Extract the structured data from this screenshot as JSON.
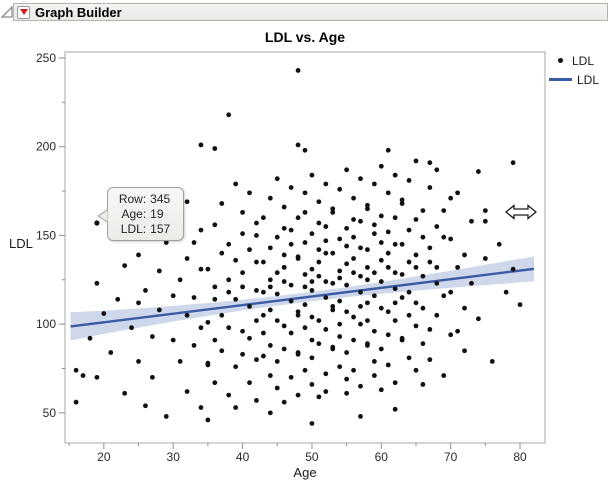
{
  "window": {
    "title": "Graph Builder"
  },
  "chart_data": {
    "type": "scatter",
    "title": "LDL vs. Age",
    "xlabel": "Age",
    "ylabel": "LDL",
    "x_domain": [
      14.4,
      83.6
    ],
    "y_domain": [
      33,
      253.4
    ],
    "x_ticks": [
      20,
      30,
      40,
      50,
      60,
      70,
      80
    ],
    "x_minor_ticks": [
      15,
      25,
      35,
      45,
      55,
      65,
      75
    ],
    "y_ticks": [
      50,
      100,
      150,
      200,
      250
    ],
    "y_minor_ticks": [
      75,
      125,
      175,
      225
    ],
    "grid": false,
    "legend_position": "top-right",
    "legend": [
      {
        "label": "LDL",
        "marker": "dot"
      },
      {
        "label": "LDL",
        "marker": "line"
      }
    ],
    "colors": {
      "point": "#111111",
      "fit_line": "#3a5ba5",
      "band": "rgba(96,124,187,0.30)",
      "axis": "#909090",
      "plot_border": "#aaaaaa",
      "tick_label": "#2a2a2a"
    },
    "fit_line": {
      "slope": 0.486,
      "intercept": 91.3,
      "x_start": 15.2,
      "x_end": 82
    },
    "confidence_band": {
      "ages": [
        15.2,
        20,
        25,
        30,
        35,
        40,
        45,
        49,
        55,
        60,
        65,
        70,
        75,
        82
      ],
      "halfwidths": [
        8.0,
        6.5,
        5.4,
        4.4,
        3.6,
        3.0,
        2.7,
        2.6,
        2.8,
        3.3,
        4.0,
        4.8,
        5.7,
        7.0
      ]
    },
    "highlight_point": [
      19,
      157
    ],
    "points": [
      [
        18,
        92
      ],
      [
        19,
        123
      ],
      [
        19,
        70
      ],
      [
        20,
        106
      ],
      [
        21,
        149
      ],
      [
        21,
        84
      ],
      [
        22,
        114
      ],
      [
        22,
        156
      ],
      [
        23,
        61
      ],
      [
        23,
        133
      ],
      [
        24,
        98
      ],
      [
        24,
        161
      ],
      [
        25,
        79
      ],
      [
        25,
        112
      ],
      [
        25,
        139
      ],
      [
        26,
        54
      ],
      [
        26,
        119
      ],
      [
        27,
        93
      ],
      [
        27,
        173
      ],
      [
        27,
        70
      ],
      [
        28,
        108
      ],
      [
        28,
        130
      ],
      [
        29,
        48
      ],
      [
        29,
        146
      ],
      [
        30,
        91
      ],
      [
        30,
        116
      ],
      [
        30,
        158
      ],
      [
        31,
        79
      ],
      [
        31,
        125
      ],
      [
        32,
        62
      ],
      [
        32,
        137
      ],
      [
        32,
        105
      ],
      [
        32,
        169
      ],
      [
        33,
        88
      ],
      [
        33,
        115
      ],
      [
        33,
        146
      ],
      [
        34,
        53
      ],
      [
        34,
        131
      ],
      [
        34,
        98
      ],
      [
        34,
        153
      ],
      [
        34,
        201
      ],
      [
        35,
        77
      ],
      [
        35,
        101
      ],
      [
        35,
        131
      ],
      [
        35,
        78
      ],
      [
        35,
        46
      ],
      [
        36,
        114
      ],
      [
        36,
        156
      ],
      [
        36,
        91
      ],
      [
        36,
        121
      ],
      [
        36,
        67
      ],
      [
        36,
        199
      ],
      [
        37,
        140
      ],
      [
        37,
        105
      ],
      [
        37,
        168
      ],
      [
        37,
        85
      ],
      [
        38,
        118
      ],
      [
        38,
        145
      ],
      [
        38,
        60
      ],
      [
        38,
        125
      ],
      [
        38,
        98
      ],
      [
        38,
        218
      ],
      [
        39,
        179
      ],
      [
        39,
        76
      ],
      [
        39,
        114
      ],
      [
        39,
        136
      ],
      [
        39,
        53
      ],
      [
        40,
        151
      ],
      [
        40,
        96
      ],
      [
        40,
        121
      ],
      [
        40,
        163
      ],
      [
        40,
        83
      ],
      [
        40,
        129
      ],
      [
        41,
        67
      ],
      [
        41,
        142
      ],
      [
        41,
        110
      ],
      [
        41,
        174
      ],
      [
        41,
        92
      ],
      [
        42,
        119
      ],
      [
        42,
        150
      ],
      [
        42,
        57
      ],
      [
        42,
        135
      ],
      [
        42,
        102
      ],
      [
        42,
        157
      ],
      [
        42,
        80
      ],
      [
        43,
        105
      ],
      [
        43,
        135
      ],
      [
        43,
        82
      ],
      [
        43,
        118
      ],
      [
        43,
        160
      ],
      [
        43,
        95
      ],
      [
        44,
        125
      ],
      [
        44,
        71
      ],
      [
        44,
        143
      ],
      [
        44,
        108
      ],
      [
        44,
        171
      ],
      [
        44,
        88
      ],
      [
        44,
        121
      ],
      [
        44,
        50
      ],
      [
        45,
        149
      ],
      [
        45,
        64
      ],
      [
        45,
        129
      ],
      [
        45,
        102
      ],
      [
        45,
        182
      ],
      [
        45,
        79
      ],
      [
        45,
        117
      ],
      [
        46,
        139
      ],
      [
        46,
        56
      ],
      [
        46,
        154
      ],
      [
        46,
        99
      ],
      [
        46,
        124
      ],
      [
        46,
        166
      ],
      [
        46,
        86
      ],
      [
        46,
        132
      ],
      [
        47,
        70
      ],
      [
        47,
        145
      ],
      [
        47,
        113
      ],
      [
        47,
        177
      ],
      [
        47,
        95
      ],
      [
        47,
        122
      ],
      [
        47,
        153
      ],
      [
        48,
        60
      ],
      [
        48,
        138
      ],
      [
        48,
        105
      ],
      [
        48,
        160
      ],
      [
        48,
        83
      ],
      [
        48,
        107
      ],
      [
        48,
        137
      ],
      [
        48,
        84
      ],
      [
        48,
        243
      ],
      [
        48,
        201
      ],
      [
        49,
        121
      ],
      [
        49,
        163
      ],
      [
        49,
        98
      ],
      [
        49,
        128
      ],
      [
        49,
        74
      ],
      [
        49,
        146
      ],
      [
        49,
        111
      ],
      [
        49,
        174
      ],
      [
        49,
        198
      ],
      [
        50,
        91
      ],
      [
        50,
        124
      ],
      [
        50,
        151
      ],
      [
        50,
        66
      ],
      [
        50,
        131
      ],
      [
        50,
        104
      ],
      [
        50,
        184
      ],
      [
        50,
        81
      ],
      [
        50,
        119
      ],
      [
        50,
        44
      ],
      [
        51,
        142
      ],
      [
        51,
        59
      ],
      [
        51,
        157
      ],
      [
        51,
        102
      ],
      [
        51,
        127
      ],
      [
        51,
        169
      ],
      [
        51,
        89
      ],
      [
        51,
        135
      ],
      [
        52,
        72
      ],
      [
        52,
        147
      ],
      [
        52,
        115
      ],
      [
        52,
        179
      ],
      [
        52,
        97
      ],
      [
        52,
        124
      ],
      [
        52,
        155
      ],
      [
        52,
        62
      ],
      [
        52,
        140
      ],
      [
        53,
        108
      ],
      [
        53,
        163
      ],
      [
        53,
        86
      ],
      [
        53,
        110
      ],
      [
        53,
        140
      ],
      [
        53,
        87
      ],
      [
        53,
        123
      ],
      [
        53,
        165
      ],
      [
        54,
        100
      ],
      [
        54,
        130
      ],
      [
        54,
        76
      ],
      [
        54,
        148
      ],
      [
        54,
        113
      ],
      [
        54,
        176
      ],
      [
        54,
        93
      ],
      [
        54,
        126
      ],
      [
        55,
        154
      ],
      [
        55,
        69
      ],
      [
        55,
        134
      ],
      [
        55,
        107
      ],
      [
        55,
        187
      ],
      [
        55,
        84
      ],
      [
        55,
        122
      ],
      [
        55,
        144
      ],
      [
        55,
        61
      ],
      [
        56,
        159
      ],
      [
        56,
        104
      ],
      [
        56,
        129
      ],
      [
        56,
        171
      ],
      [
        56,
        91
      ],
      [
        56,
        137
      ],
      [
        56,
        74
      ],
      [
        56,
        149
      ],
      [
        57,
        118
      ],
      [
        57,
        182
      ],
      [
        57,
        100
      ],
      [
        57,
        127
      ],
      [
        57,
        158
      ],
      [
        57,
        65
      ],
      [
        57,
        143
      ],
      [
        57,
        110
      ],
      [
        57,
        48
      ],
      [
        58,
        165
      ],
      [
        58,
        88
      ],
      [
        58,
        112
      ],
      [
        58,
        142
      ],
      [
        58,
        89
      ],
      [
        58,
        125
      ],
      [
        58,
        167
      ],
      [
        58,
        102
      ],
      [
        58,
        132
      ],
      [
        59,
        79
      ],
      [
        59,
        151
      ],
      [
        59,
        116
      ],
      [
        59,
        179
      ],
      [
        59,
        96
      ],
      [
        59,
        129
      ],
      [
        59,
        156
      ],
      [
        59,
        71
      ],
      [
        60,
        136
      ],
      [
        60,
        109
      ],
      [
        60,
        189
      ],
      [
        60,
        86
      ],
      [
        60,
        124
      ],
      [
        60,
        146
      ],
      [
        60,
        63
      ],
      [
        60,
        161
      ],
      [
        61,
        107
      ],
      [
        61,
        132
      ],
      [
        61,
        174
      ],
      [
        61,
        94
      ],
      [
        61,
        140
      ],
      [
        61,
        77
      ],
      [
        61,
        152
      ],
      [
        61,
        198
      ],
      [
        62,
        120
      ],
      [
        62,
        184
      ],
      [
        62,
        102
      ],
      [
        62,
        129
      ],
      [
        62,
        160
      ],
      [
        62,
        67
      ],
      [
        62,
        145
      ],
      [
        62,
        112
      ],
      [
        62,
        52
      ],
      [
        63,
        168
      ],
      [
        63,
        91
      ],
      [
        63,
        115
      ],
      [
        63,
        145
      ],
      [
        63,
        92
      ],
      [
        63,
        128
      ],
      [
        63,
        170
      ],
      [
        64,
        105
      ],
      [
        64,
        135
      ],
      [
        64,
        81
      ],
      [
        64,
        153
      ],
      [
        64,
        118
      ],
      [
        64,
        181
      ],
      [
        65,
        99
      ],
      [
        65,
        132
      ],
      [
        65,
        159
      ],
      [
        65,
        74
      ],
      [
        65,
        139
      ],
      [
        65,
        112
      ],
      [
        65,
        192
      ],
      [
        66,
        89
      ],
      [
        66,
        127
      ],
      [
        66,
        149
      ],
      [
        66,
        66
      ],
      [
        66,
        164
      ],
      [
        66,
        109
      ],
      [
        67,
        135
      ],
      [
        67,
        177
      ],
      [
        67,
        97
      ],
      [
        67,
        143
      ],
      [
        67,
        80
      ],
      [
        67,
        191
      ],
      [
        68,
        155
      ],
      [
        68,
        123
      ],
      [
        68,
        187
      ],
      [
        68,
        105
      ],
      [
        68,
        132
      ],
      [
        69,
        164
      ],
      [
        69,
        71
      ],
      [
        69,
        149
      ],
      [
        69,
        116
      ],
      [
        70,
        171
      ],
      [
        70,
        94
      ],
      [
        70,
        118
      ],
      [
        70,
        148
      ],
      [
        71,
        96
      ],
      [
        71,
        132
      ],
      [
        71,
        174
      ],
      [
        72,
        109
      ],
      [
        72,
        139
      ],
      [
        72,
        85
      ],
      [
        73,
        158
      ],
      [
        73,
        123
      ],
      [
        74,
        186
      ],
      [
        74,
        103
      ],
      [
        75,
        137
      ],
      [
        75,
        164
      ],
      [
        75,
        158
      ],
      [
        76,
        79
      ],
      [
        77,
        145
      ],
      [
        78,
        118
      ],
      [
        79,
        191
      ],
      [
        79,
        131
      ],
      [
        80,
        111
      ],
      [
        16,
        74
      ],
      [
        16,
        56
      ],
      [
        17,
        71
      ]
    ]
  },
  "tooltip": {
    "rows": [
      {
        "label": "Row:",
        "value": "345"
      },
      {
        "label": "Age:",
        "value": "19"
      },
      {
        "label": "LDL:",
        "value": "157"
      }
    ]
  }
}
